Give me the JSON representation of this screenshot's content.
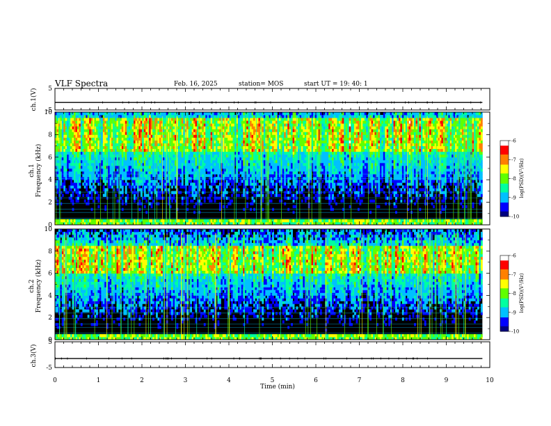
{
  "header": {
    "title": "VLF Spectra",
    "date": "Feb. 16, 2025",
    "station": "station= MOS",
    "start": "start  UT =    19: 40: 1"
  },
  "chart_data": [
    {
      "type": "line",
      "panel": "ch.1 waveform",
      "ylabel": "ch.1(V)",
      "ylim": [
        -5,
        5
      ],
      "y_ticks": [
        "5",
        "-5"
      ],
      "x_range_min": [
        0,
        9.83
      ],
      "y_level": -1.5
    },
    {
      "type": "heatmap",
      "panel": "ch.1 spectrogram",
      "ylabel_line1": "ch.1",
      "ylabel_line2": "Frequency  (kHz)",
      "ylim": [
        0,
        10
      ],
      "y_ticks": [
        "0",
        "2",
        "4",
        "6",
        "8",
        "10"
      ],
      "x_range_min": [
        0,
        9.83
      ],
      "dominant_band_khz": [
        6.5,
        9.5
      ],
      "colorbar": {
        "label": "log(PSD)(V²/Hz)",
        "range": [
          -10,
          -6
        ],
        "ticks": [
          "-6",
          "-7",
          "-8",
          "-9",
          "-10"
        ]
      }
    },
    {
      "type": "heatmap",
      "panel": "ch.2 spectrogram",
      "ylabel_line1": "ch.2",
      "ylabel_line2": "Frequency  (kHz)",
      "ylim": [
        0,
        10
      ],
      "y_ticks": [
        "0",
        "2",
        "4",
        "6",
        "8",
        "10"
      ],
      "x_range_min": [
        0,
        9.83
      ],
      "dominant_band_khz": [
        6.0,
        8.5
      ],
      "colorbar": {
        "label": "log(PSD)(V²/Hz)",
        "range": [
          -10,
          -6
        ],
        "ticks": [
          "-6",
          "-7",
          "-8",
          "-9",
          "-10"
        ]
      }
    },
    {
      "type": "line",
      "panel": "ch.3 waveform",
      "ylabel": "ch.3(V)",
      "ylim": [
        -5,
        5
      ],
      "y_ticks": [
        "5",
        "-5"
      ],
      "x_range_min": [
        0,
        9.83
      ],
      "y_level": -1.5
    }
  ],
  "x_axis": {
    "label": "Time  (min)",
    "range": [
      0,
      10
    ],
    "ticks": [
      "0",
      "1",
      "2",
      "3",
      "4",
      "5",
      "6",
      "7",
      "8",
      "9",
      "10"
    ]
  },
  "colormap": [
    "#000080",
    "#0000ff",
    "#00c0ff",
    "#00ffa0",
    "#60ff00",
    "#ffff00",
    "#ff8000",
    "#ff0000",
    "#ffffff"
  ]
}
